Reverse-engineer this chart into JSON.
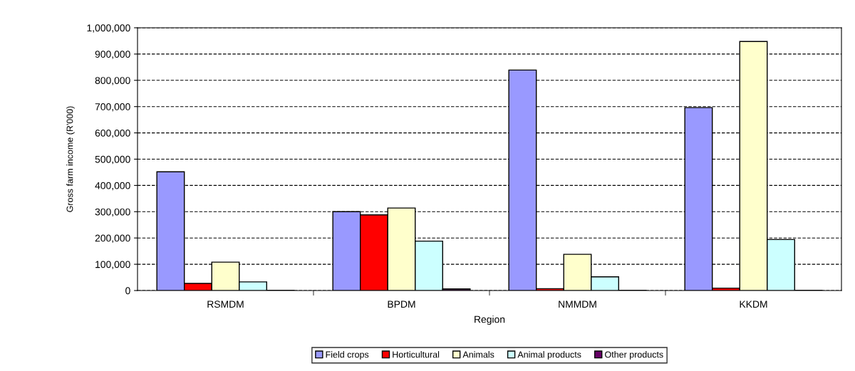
{
  "chart_data": {
    "type": "bar",
    "xlabel": "Region",
    "ylabel": "Gross farm income (R'000)",
    "categories": [
      "RSMDM",
      "BPDM",
      "NMMDM",
      "KKDM"
    ],
    "series": [
      {
        "name": "Field crops",
        "color": "#9999ff",
        "values": [
          452000,
          300000,
          839000,
          696000
        ]
      },
      {
        "name": "Horticultural",
        "color": "#ff0000",
        "values": [
          27000,
          288000,
          7000,
          9000
        ]
      },
      {
        "name": "Animals",
        "color": "#ffffcc",
        "values": [
          108000,
          314000,
          138000,
          948000
        ]
      },
      {
        "name": "Animal products",
        "color": "#ccffff",
        "values": [
          33000,
          188000,
          52000,
          194000
        ]
      },
      {
        "name": "Other products",
        "color": "#660066",
        "values": [
          1000,
          6000,
          1000,
          1000
        ]
      }
    ],
    "ylim": [
      0,
      1000000
    ],
    "yticks": [
      {
        "value": 0,
        "label": "0"
      },
      {
        "value": 100000,
        "label": "100,000"
      },
      {
        "value": 200000,
        "label": "200,000"
      },
      {
        "value": 300000,
        "label": "300,000"
      },
      {
        "value": 400000,
        "label": "400,000"
      },
      {
        "value": 500000,
        "label": "500,000"
      },
      {
        "value": 600000,
        "label": "600,000"
      },
      {
        "value": 700000,
        "label": "700,000"
      },
      {
        "value": 800000,
        "label": "800,000"
      },
      {
        "value": 900000,
        "label": "900,000"
      },
      {
        "value": 1000000,
        "label": "1,000,000"
      }
    ],
    "grid": "y",
    "legend": "bottom"
  }
}
